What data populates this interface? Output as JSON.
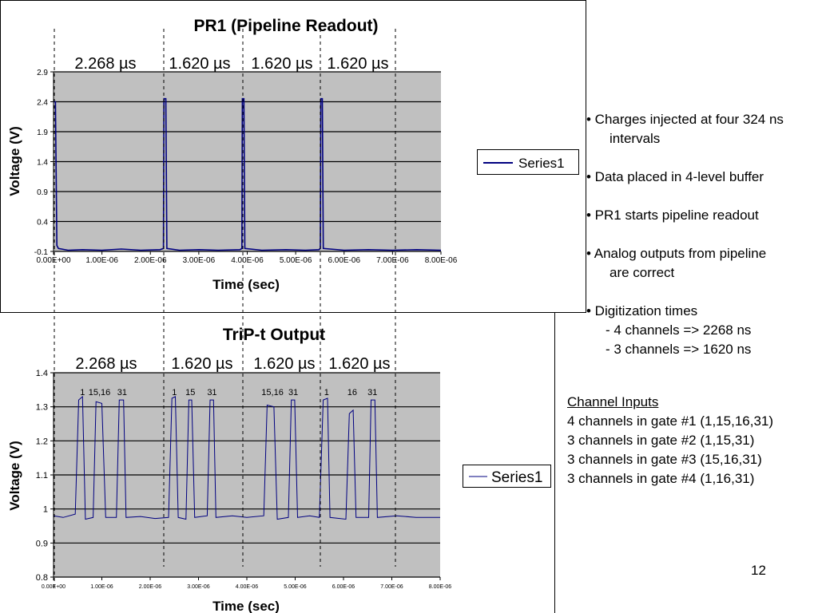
{
  "chart_data": [
    {
      "type": "line",
      "title": "PR1 (Pipeline Readout)",
      "xlabel": "Time (sec)",
      "ylabel": "Voltage (V)",
      "xlim": [
        0,
        8e-06
      ],
      "ylim": [
        -0.1,
        2.9
      ],
      "x_ticks": [
        "0.00E+00",
        "1.00E-06",
        "2.00E-06",
        "3.00E-06",
        "4.00E-06",
        "5.00E-06",
        "6.00E-06",
        "7.00E-06",
        "8.00E-06"
      ],
      "y_ticks": [
        "2.9",
        "2.4",
        "1.9",
        "1.4",
        "0.9",
        "0.4",
        "-0.1"
      ],
      "grid": "horizontal",
      "legend": "right",
      "interval_labels": [
        "2.268 µs",
        "1.620 µs",
        "1.620 µs",
        "1.620 µs"
      ],
      "series": [
        {
          "name": "Series1",
          "color": "#000080",
          "points": [
            [
              0.0,
              2.4
            ],
            [
              4e-08,
              2.4
            ],
            [
              7e-08,
              0.0
            ],
            [
              1e-07,
              -0.05
            ],
            [
              3e-07,
              -0.08
            ],
            [
              6e-07,
              -0.07
            ],
            [
              1e-06,
              -0.08
            ],
            [
              1.4e-06,
              -0.06
            ],
            [
              1.8e-06,
              -0.08
            ],
            [
              2.2e-06,
              -0.07
            ],
            [
              2.27e-06,
              -0.05
            ],
            [
              2.28e-06,
              2.45
            ],
            [
              2.32e-06,
              2.45
            ],
            [
              2.34e-06,
              -0.05
            ],
            [
              2.6e-06,
              -0.08
            ],
            [
              3e-06,
              -0.07
            ],
            [
              3.4e-06,
              -0.08
            ],
            [
              3.85e-06,
              -0.07
            ],
            [
              3.89e-06,
              -0.05
            ],
            [
              3.9e-06,
              2.45
            ],
            [
              3.93e-06,
              2.45
            ],
            [
              3.95e-06,
              -0.05
            ],
            [
              4.3e-06,
              -0.08
            ],
            [
              4.8e-06,
              -0.07
            ],
            [
              5.2e-06,
              -0.08
            ],
            [
              5.48e-06,
              -0.07
            ],
            [
              5.51e-06,
              -0.05
            ],
            [
              5.52e-06,
              2.45
            ],
            [
              5.55e-06,
              2.45
            ],
            [
              5.57e-06,
              -0.05
            ],
            [
              6e-06,
              -0.08
            ],
            [
              6.5e-06,
              -0.07
            ],
            [
              7e-06,
              -0.08
            ],
            [
              7.5e-06,
              -0.07
            ],
            [
              8e-06,
              -0.08
            ]
          ]
        }
      ]
    },
    {
      "type": "line",
      "title": "TriP-t Output",
      "xlabel": "Time (sec)",
      "ylabel": "Voltage (V)",
      "xlim": [
        0,
        8e-06
      ],
      "ylim": [
        0.8,
        1.4
      ],
      "x_ticks": [
        "0.00E+00",
        "1.00E-06",
        "2.00E-06",
        "3.00E-06",
        "4.00E-06",
        "5.00E-06",
        "6.00E-06",
        "7.00E-06",
        "8.00E-06"
      ],
      "y_ticks": [
        "1.4",
        "1.3",
        "1.2",
        "1.1",
        "1",
        "0.9",
        "0.8"
      ],
      "grid": "horizontal",
      "legend": "right",
      "interval_labels": [
        "2.268 µs",
        "1.620 µs",
        "1.620 µs",
        "1.620 µs"
      ],
      "annotations": [
        {
          "text": "1",
          "x": 6e-07
        },
        {
          "text": "15,16",
          "x": 9.5e-07
        },
        {
          "text": "31",
          "x": 1.42e-06
        },
        {
          "text": "1",
          "x": 2.5e-06
        },
        {
          "text": "15",
          "x": 2.83e-06
        },
        {
          "text": "31",
          "x": 3.28e-06
        },
        {
          "text": "15,16",
          "x": 4.53e-06
        },
        {
          "text": "31",
          "x": 4.96e-06
        },
        {
          "text": "1",
          "x": 5.65e-06
        },
        {
          "text": "16",
          "x": 6.18e-06
        },
        {
          "text": "31",
          "x": 6.6e-06
        }
      ],
      "series": [
        {
          "name": "Series1",
          "color": "#000080",
          "points": [
            [
              0.0,
              0.98
            ],
            [
              2e-07,
              0.975
            ],
            [
              4.5e-07,
              0.985
            ],
            [
              5.2e-07,
              1.32
            ],
            [
              6e-07,
              1.33
            ],
            [
              6.6e-07,
              0.97
            ],
            [
              8.2e-07,
              0.975
            ],
            [
              8.8e-07,
              1.315
            ],
            [
              1e-06,
              1.31
            ],
            [
              1.08e-06,
              0.975
            ],
            [
              1.3e-06,
              0.975
            ],
            [
              1.36e-06,
              1.32
            ],
            [
              1.45e-06,
              1.32
            ],
            [
              1.5e-06,
              0.975
            ],
            [
              1.8e-06,
              0.978
            ],
            [
              2.1e-06,
              0.972
            ],
            [
              2.38e-06,
              0.975
            ],
            [
              2.45e-06,
              1.325
            ],
            [
              2.52e-06,
              1.33
            ],
            [
              2.58e-06,
              0.975
            ],
            [
              2.74e-06,
              0.97
            ],
            [
              2.8e-06,
              1.32
            ],
            [
              2.86e-06,
              1.32
            ],
            [
              2.92e-06,
              0.975
            ],
            [
              3.18e-06,
              0.98
            ],
            [
              3.24e-06,
              1.32
            ],
            [
              3.31e-06,
              1.32
            ],
            [
              3.36e-06,
              0.975
            ],
            [
              3.7e-06,
              0.98
            ],
            [
              4e-06,
              0.975
            ],
            [
              4.35e-06,
              0.98
            ],
            [
              4.42e-06,
              1.305
            ],
            [
              4.56e-06,
              1.3
            ],
            [
              4.63e-06,
              0.97
            ],
            [
              4.86e-06,
              0.975
            ],
            [
              4.92e-06,
              1.32
            ],
            [
              4.99e-06,
              1.32
            ],
            [
              5.05e-06,
              0.975
            ],
            [
              5.3e-06,
              0.98
            ],
            [
              5.5e-06,
              0.975
            ],
            [
              5.58e-06,
              1.32
            ],
            [
              5.67e-06,
              1.325
            ],
            [
              5.72e-06,
              0.975
            ],
            [
              6.05e-06,
              0.97
            ],
            [
              6.12e-06,
              1.28
            ],
            [
              6.2e-06,
              1.29
            ],
            [
              6.26e-06,
              0.975
            ],
            [
              6.52e-06,
              0.975
            ],
            [
              6.57e-06,
              1.32
            ],
            [
              6.65e-06,
              1.32
            ],
            [
              6.7e-06,
              0.975
            ],
            [
              7.1e-06,
              0.98
            ],
            [
              7.5e-06,
              0.975
            ],
            [
              8e-06,
              0.975
            ]
          ]
        }
      ]
    }
  ],
  "notes": {
    "b1_line1": "• Charges injected at four 324 ns",
    "b1_line2": "intervals",
    "b2": "• Data placed in 4-level buffer",
    "b3": "• PR1 starts pipeline readout",
    "b4_line1": "• Analog outputs from pipeline",
    "b4_line2": "are correct",
    "b5_line1": "• Digitization times",
    "b5_line2": "- 4 channels => 2268 ns",
    "b5_line3": "- 3 channels => 1620 ns"
  },
  "channel_inputs": {
    "heading": "Channel Inputs",
    "lines": [
      "4 channels in gate #1 (1,15,16,31)",
      "3 channels in gate #2 (1,15,31)",
      "3 channels in gate #3 (15,16,31)",
      "3 channels in gate #4 (1,16,31)"
    ]
  },
  "page_number": "12"
}
